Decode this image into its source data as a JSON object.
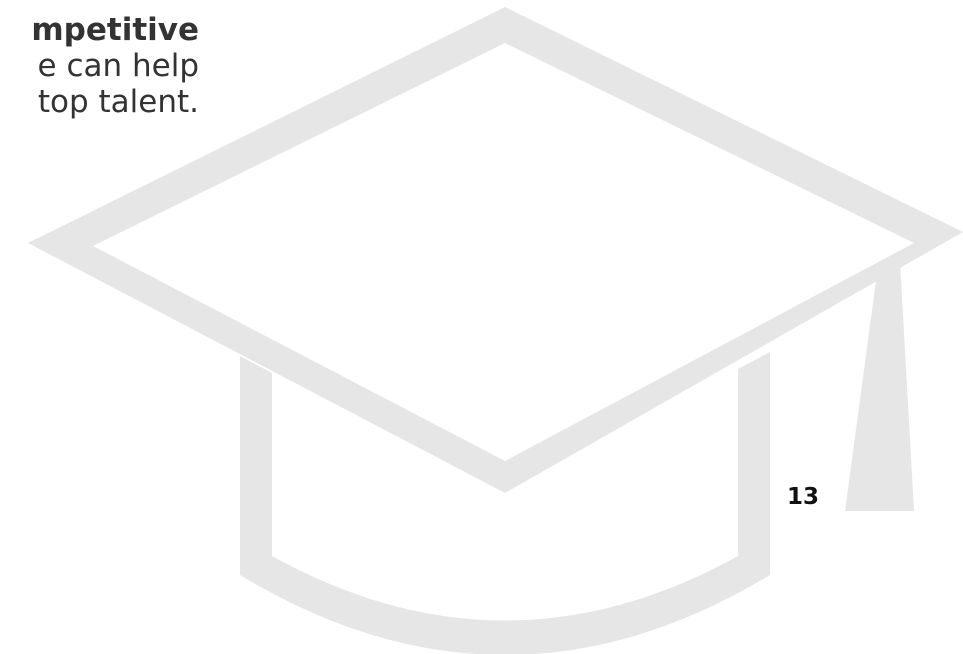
{
  "intro_text": {
    "line_1": "mpetitive",
    "line_2": "e can help",
    "line_3": "top talent."
  },
  "page_number": "13",
  "graphic": {
    "icon": "graduation-cap-icon",
    "color": "#e6e6e6"
  }
}
